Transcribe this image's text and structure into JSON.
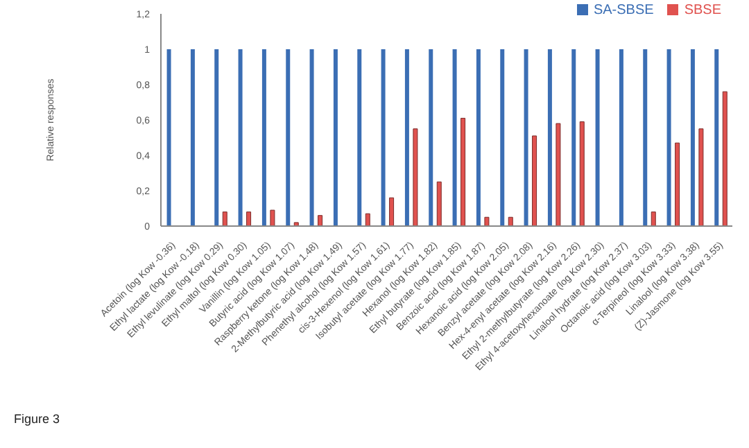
{
  "chart_data": {
    "type": "bar",
    "categories": [
      "Acetoin (log Kow -0.36)",
      "Ethyl lactate (log Kow -0.18)",
      "Ethyl levulinate (log Kow 0.29)",
      "Ethyl maltol (log Kow 0.30)",
      "Vanillin (log Kow 1.05)",
      "Butyric acid (log Kow 1.07)",
      "Raspberry ketone (log Kow 1.48)",
      "2-Methylbutyric acid (log Kow 1.49)",
      "Phenethyl alcohol (log Kow 1.57)",
      "cis-3-Hexenol (log Kow 1.61)",
      "Isobutyl acetate (log Kow 1.77)",
      "Hexanol (log Kow 1.82)",
      "Ethyl butyrate (log Kow 1.85)",
      "Benzoic acid (log Kow 1.87)",
      "Hexanoic acid (log Kow 2.05)",
      "Benzyl acetate (log Kow 2.08)",
      "Hex-4-enyl acetate (log Kow 2.16)",
      "Ethyl 2-methylbutyrate (log Kow 2.26)",
      "Ethyl 4-acetoxyhexanoate (log Kow 2.30)",
      "Linalool hydrate (log Kow 2.37)",
      "Octanoic acid (log Kow 3.03)",
      "α-Terpineol (log Kow 3.33)",
      "Linalool (log Kow 3.38)",
      "(Z)-Jasmone (log Kow 3.55)"
    ],
    "series": [
      {
        "name": "SA-SBSE",
        "color": "#3b6eb4",
        "values": [
          1,
          1,
          1,
          1,
          1,
          1,
          1,
          1,
          1,
          1,
          1,
          1,
          1,
          1,
          1,
          1,
          1,
          1,
          1,
          1,
          1,
          1,
          1,
          1
        ]
      },
      {
        "name": "SBSE",
        "color": "#e0524f",
        "values": [
          0,
          0,
          0.08,
          0.08,
          0.09,
          0.02,
          0.06,
          0,
          0.07,
          0.16,
          0.55,
          0.25,
          0.61,
          0.05,
          0.05,
          0.51,
          0.58,
          0.59,
          0,
          0,
          0.08,
          0.47,
          0.55,
          0.76
        ]
      }
    ],
    "ylabel": "Relative responses",
    "ylim": [
      0,
      1.2
    ],
    "yticks": [
      {
        "value": 0,
        "label": "0"
      },
      {
        "value": 0.2,
        "label": "0,2"
      },
      {
        "value": 0.4,
        "label": "0,4"
      },
      {
        "value": 0.6,
        "label": "0,6"
      },
      {
        "value": 0.8,
        "label": "0,8"
      },
      {
        "value": 1,
        "label": "1"
      },
      {
        "value": 1.2,
        "label": "1,2"
      }
    ],
    "grid": false,
    "legend": "top right",
    "annotations": [
      "Figure 3"
    ]
  }
}
